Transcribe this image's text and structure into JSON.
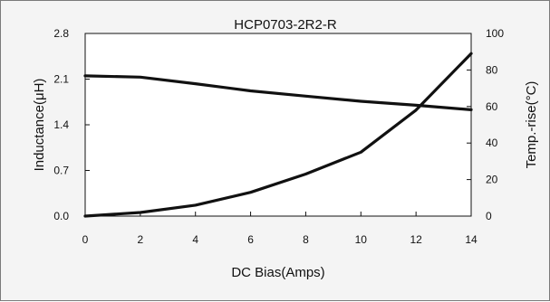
{
  "chart_data": {
    "type": "line",
    "title": "HCP0703-2R2-R",
    "xlabel": "DC Bias(Amps)",
    "ylabel": "Inductance(μH)",
    "y2label": "Temp.-rise(°C)",
    "xlim": [
      0,
      14
    ],
    "ylim": [
      0,
      2.8
    ],
    "y2lim": [
      0,
      100
    ],
    "x_ticks": [
      "0",
      "2",
      "4",
      "6",
      "8",
      "10",
      "12",
      "14"
    ],
    "y_ticks": [
      "0.0",
      "0.7",
      "1.4",
      "2.1",
      "2.8"
    ],
    "y2_ticks": [
      "0",
      "20",
      "40",
      "60",
      "80",
      "100"
    ],
    "grid": "dashed horizontal",
    "legend": "none",
    "series": [
      {
        "axis": "left",
        "x": [
          0,
          2,
          4,
          6,
          8,
          10,
          12,
          14
        ],
        "values": [
          2.15,
          2.13,
          2.03,
          1.92,
          1.84,
          1.76,
          1.7,
          1.63
        ]
      },
      {
        "axis": "right",
        "x": [
          0,
          2,
          4,
          6,
          8,
          10,
          12,
          14
        ],
        "values": [
          0,
          2,
          6,
          13,
          23,
          35,
          58,
          89
        ]
      }
    ],
    "colors": {
      "line": "#111111",
      "grid": "#555555",
      "background": "#f4f4f4"
    }
  }
}
